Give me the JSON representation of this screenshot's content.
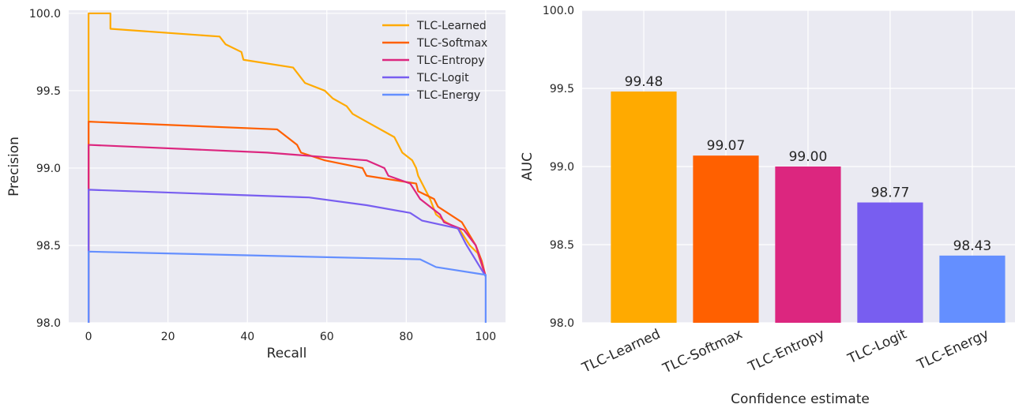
{
  "chart_data": [
    {
      "type": "line",
      "xlabel": "Recall",
      "ylabel": "Precision",
      "xlim": [
        -5,
        105
      ],
      "ylim": [
        98.0,
        100.02
      ],
      "xticks": [
        0,
        20,
        40,
        60,
        80,
        100
      ],
      "yticks": [
        98.0,
        98.5,
        99.0,
        99.5,
        100.0
      ],
      "xtick_labels": [
        "0",
        "20",
        "40",
        "60",
        "80",
        "100"
      ],
      "ytick_labels": [
        "98.0",
        "98.5",
        "99.0",
        "99.5",
        "100.0"
      ],
      "grid": true,
      "legend_position": "top-right",
      "series": [
        {
          "name": "TLC-Learned",
          "color": "#ffaa00",
          "points": [
            [
              0,
              98.0
            ],
            [
              0,
              100.0
            ],
            [
              5.5,
              100.0
            ],
            [
              5.5,
              99.9
            ],
            [
              33,
              99.85
            ],
            [
              34.5,
              99.8
            ],
            [
              38.5,
              99.75
            ],
            [
              39,
              99.7
            ],
            [
              51.5,
              99.65
            ],
            [
              53,
              99.6
            ],
            [
              54.5,
              99.55
            ],
            [
              59.5,
              99.5
            ],
            [
              61.5,
              99.45
            ],
            [
              65,
              99.4
            ],
            [
              66.5,
              99.35
            ],
            [
              70,
              99.3
            ],
            [
              77,
              99.2
            ],
            [
              79,
              99.1
            ],
            [
              81.5,
              99.05
            ],
            [
              82.5,
              99.0
            ],
            [
              83,
              98.95
            ],
            [
              86,
              98.8
            ],
            [
              87.5,
              98.7
            ],
            [
              90,
              98.65
            ],
            [
              93.5,
              98.6
            ],
            [
              96,
              98.5
            ],
            [
              98,
              98.45
            ],
            [
              100,
              98.3
            ]
          ]
        },
        {
          "name": "TLC-Softmax",
          "color": "#ff6000",
          "points": [
            [
              0,
              98.0
            ],
            [
              0,
              99.3
            ],
            [
              47.5,
              99.25
            ],
            [
              52.5,
              99.15
            ],
            [
              53.5,
              99.1
            ],
            [
              59.5,
              99.05
            ],
            [
              69,
              99.0
            ],
            [
              70,
              98.95
            ],
            [
              82.5,
              98.9
            ],
            [
              83,
              98.85
            ],
            [
              87,
              98.8
            ],
            [
              88,
              98.75
            ],
            [
              94,
              98.65
            ],
            [
              97.5,
              98.5
            ],
            [
              99,
              98.4
            ],
            [
              100,
              98.3
            ]
          ]
        },
        {
          "name": "TLC-Entropy",
          "color": "#dc267f",
          "points": [
            [
              0,
              98.0
            ],
            [
              0,
              99.15
            ],
            [
              45,
              99.1
            ],
            [
              70,
              99.05
            ],
            [
              74.5,
              99.0
            ],
            [
              75.5,
              98.95
            ],
            [
              81,
              98.9
            ],
            [
              83.5,
              98.8
            ],
            [
              88.5,
              98.7
            ],
            [
              89.5,
              98.65
            ],
            [
              94.5,
              98.6
            ],
            [
              97.5,
              98.5
            ],
            [
              100,
              98.3
            ]
          ]
        },
        {
          "name": "TLC-Logit",
          "color": "#785ef0",
          "points": [
            [
              0,
              98.0
            ],
            [
              0,
              98.86
            ],
            [
              55.5,
              98.81
            ],
            [
              70,
              98.76
            ],
            [
              81,
              98.71
            ],
            [
              84,
              98.66
            ],
            [
              93,
              98.61
            ],
            [
              95,
              98.51
            ],
            [
              100,
              98.3
            ]
          ]
        },
        {
          "name": "TLC-Energy",
          "color": "#648fff",
          "points": [
            [
              0,
              98.0
            ],
            [
              0,
              98.46
            ],
            [
              83.5,
              98.41
            ],
            [
              87.5,
              98.36
            ],
            [
              100,
              98.31
            ],
            [
              100,
              98.0
            ]
          ]
        }
      ]
    },
    {
      "type": "bar",
      "xlabel": "Confidence estimate",
      "ylabel": "AUC",
      "ylim": [
        98.0,
        100.0
      ],
      "yticks": [
        98.0,
        98.5,
        99.0,
        99.5,
        100.0
      ],
      "ytick_labels": [
        "98.0",
        "98.5",
        "99.0",
        "99.5",
        "100.0"
      ],
      "grid": true,
      "categories": [
        "TLC-Learned",
        "TLC-Softmax",
        "TLC-Entropy",
        "TLC-Logit",
        "TLC-Energy"
      ],
      "values": [
        99.48,
        99.07,
        99.0,
        98.77,
        98.43
      ],
      "value_labels": [
        "99.48",
        "99.07",
        "99.00",
        "98.77",
        "98.43"
      ],
      "colors": [
        "#ffaa00",
        "#ff6000",
        "#dc267f",
        "#785ef0",
        "#648fff"
      ]
    }
  ]
}
